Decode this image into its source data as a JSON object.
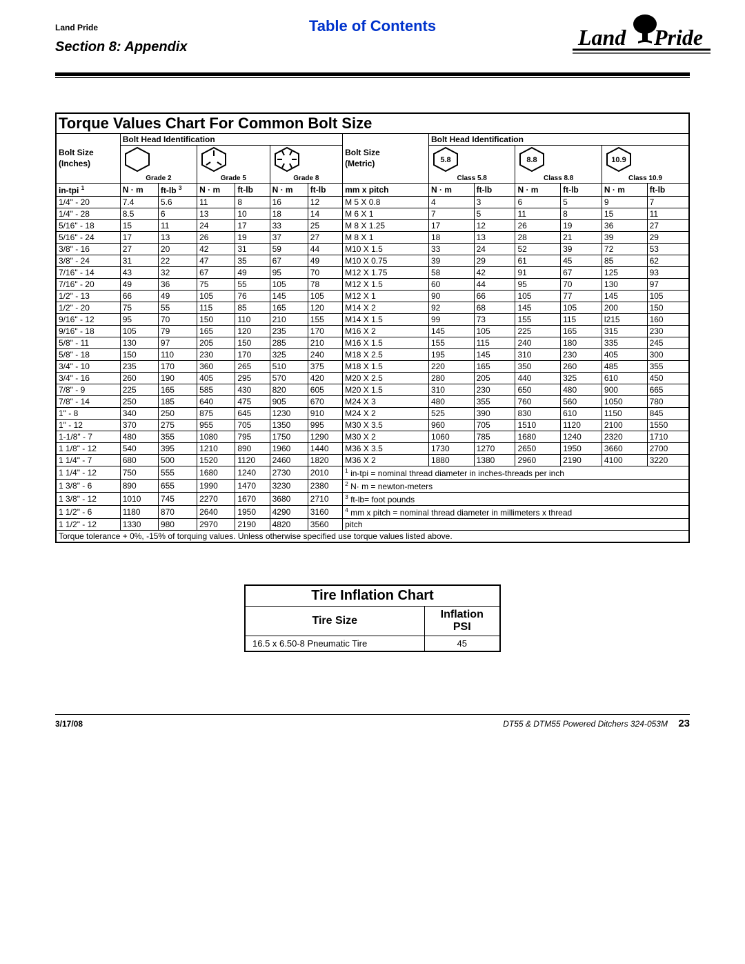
{
  "header": {
    "brand_small": "Land Pride",
    "toc": "Table of Contents",
    "section": "Section 8: Appendix"
  },
  "torque": {
    "title": "Torque Values Chart For Common Bolt Size",
    "ident_label": "Bolt Head Identification",
    "bolt_size_inches_l1": "Bolt Size",
    "bolt_size_inches_l2": "(Inches)",
    "bolt_size_metric_l1": "Bolt Size",
    "bolt_size_metric_l2": "(Metric)",
    "grades_sae": [
      "Grade 2",
      "Grade 5",
      "Grade 8"
    ],
    "classes_metric_num": [
      "5.8",
      "8.8",
      "10.9"
    ],
    "classes_metric_lbl": [
      "Class 5.8",
      "Class 8.8",
      "Class 10.9"
    ],
    "col_in": "in-tpi",
    "col_mm": "mm x pitch",
    "col_nm": "N · m",
    "col_ftlb": "ft-lb",
    "sae_rows": [
      [
        "1/4\" - 20",
        "7.4",
        "5.6",
        "11",
        "8",
        "16",
        "12"
      ],
      [
        "1/4\" - 28",
        "8.5",
        "6",
        "13",
        "10",
        "18",
        "14"
      ],
      [
        "5/16\" - 18",
        "15",
        "11",
        "24",
        "17",
        "33",
        "25"
      ],
      [
        "5/16\" - 24",
        "17",
        "13",
        "26",
        "19",
        "37",
        "27"
      ],
      [
        "3/8\" - 16",
        "27",
        "20",
        "42",
        "31",
        "59",
        "44"
      ],
      [
        "3/8\" - 24",
        "31",
        "22",
        "47",
        "35",
        "67",
        "49"
      ],
      [
        "7/16\" - 14",
        "43",
        "32",
        "67",
        "49",
        "95",
        "70"
      ],
      [
        "7/16\" - 20",
        "49",
        "36",
        "75",
        "55",
        "105",
        "78"
      ],
      [
        "1/2\" - 13",
        "66",
        "49",
        "105",
        "76",
        "145",
        "105"
      ],
      [
        "1/2\" - 20",
        "75",
        "55",
        "115",
        "85",
        "165",
        "120"
      ],
      [
        "9/16\" - 12",
        "95",
        "70",
        "150",
        "110",
        "210",
        "155"
      ],
      [
        "9/16\" - 18",
        "105",
        "79",
        "165",
        "120",
        "235",
        "170"
      ],
      [
        "5/8\" - 11",
        "130",
        "97",
        "205",
        "150",
        "285",
        "210"
      ],
      [
        "5/8\" - 18",
        "150",
        "110",
        "230",
        "170",
        "325",
        "240"
      ],
      [
        "3/4\" - 10",
        "235",
        "170",
        "360",
        "265",
        "510",
        "375"
      ],
      [
        "3/4\" - 16",
        "260",
        "190",
        "405",
        "295",
        "570",
        "420"
      ],
      [
        "7/8\" - 9",
        "225",
        "165",
        "585",
        "430",
        "820",
        "605"
      ],
      [
        "7/8\" - 14",
        "250",
        "185",
        "640",
        "475",
        "905",
        "670"
      ],
      [
        "1\" - 8",
        "340",
        "250",
        "875",
        "645",
        "1230",
        "910"
      ],
      [
        "1\" - 12",
        "370",
        "275",
        "955",
        "705",
        "1350",
        "995"
      ],
      [
        "1-1/8\" - 7",
        "480",
        "355",
        "1080",
        "795",
        "1750",
        "1290"
      ],
      [
        "1 1/8\" - 12",
        "540",
        "395",
        "1210",
        "890",
        "1960",
        "1440"
      ],
      [
        "1 1/4\" - 7",
        "680",
        "500",
        "1520",
        "1120",
        "2460",
        "1820"
      ],
      [
        "1 1/4\" - 12",
        "750",
        "555",
        "1680",
        "1240",
        "2730",
        "2010"
      ],
      [
        "1 3/8\" - 6",
        "890",
        "655",
        "1990",
        "1470",
        "3230",
        "2380"
      ],
      [
        "1 3/8\" - 12",
        "1010",
        "745",
        "2270",
        "1670",
        "3680",
        "2710"
      ],
      [
        "1 1/2\" - 6",
        "1180",
        "870",
        "2640",
        "1950",
        "4290",
        "3160"
      ],
      [
        "1 1/2\" - 12",
        "1330",
        "980",
        "2970",
        "2190",
        "4820",
        "3560"
      ]
    ],
    "metric_rows": [
      [
        "M 5 X 0.8",
        "4",
        "3",
        "6",
        "5",
        "9",
        "7"
      ],
      [
        "M 6 X 1",
        "7",
        "5",
        "11",
        "8",
        "15",
        "11"
      ],
      [
        "M 8 X 1.25",
        "17",
        "12",
        "26",
        "19",
        "36",
        "27"
      ],
      [
        "M 8 X 1",
        "18",
        "13",
        "28",
        "21",
        "39",
        "29"
      ],
      [
        "M10 X 1.5",
        "33",
        "24",
        "52",
        "39",
        "72",
        "53"
      ],
      [
        "M10 X 0.75",
        "39",
        "29",
        "61",
        "45",
        "85",
        "62"
      ],
      [
        "M12 X 1.75",
        "58",
        "42",
        "91",
        "67",
        "125",
        "93"
      ],
      [
        "M12 X 1.5",
        "60",
        "44",
        "95",
        "70",
        "130",
        "97"
      ],
      [
        "M12 X 1",
        "90",
        "66",
        "105",
        "77",
        "145",
        "105"
      ],
      [
        "M14 X 2",
        "92",
        "68",
        "145",
        "105",
        "200",
        "150"
      ],
      [
        "M14 X 1.5",
        "99",
        "73",
        "155",
        "115",
        "l215",
        "160"
      ],
      [
        "M16 X 2",
        "145",
        "105",
        "225",
        "165",
        "315",
        "230"
      ],
      [
        "M16 X 1.5",
        "155",
        "115",
        "240",
        "180",
        "335",
        "245"
      ],
      [
        "M18 X 2.5",
        "195",
        "145",
        "310",
        "230",
        "405",
        "300"
      ],
      [
        "M18 X 1.5",
        "220",
        "165",
        "350",
        "260",
        "485",
        "355"
      ],
      [
        "M20 X 2.5",
        "280",
        "205",
        "440",
        "325",
        "610",
        "450"
      ],
      [
        "M20 X 1.5",
        "310",
        "230",
        "650",
        "480",
        "900",
        "665"
      ],
      [
        "M24 X 3",
        "480",
        "355",
        "760",
        "560",
        "1050",
        "780"
      ],
      [
        "M24 X 2",
        "525",
        "390",
        "830",
        "610",
        "1150",
        "845"
      ],
      [
        "M30 X 3.5",
        "960",
        "705",
        "1510",
        "1120",
        "2100",
        "1550"
      ],
      [
        "M30 X 2",
        "1060",
        "785",
        "1680",
        "1240",
        "2320",
        "1710"
      ],
      [
        "M36 X 3.5",
        "1730",
        "1270",
        "2650",
        "1950",
        "3660",
        "2700"
      ],
      [
        "M36 X 2",
        "1880",
        "1380",
        "2960",
        "2190",
        "4100",
        "3220"
      ]
    ],
    "footnotes": [
      "in-tpi = nominal thread diameter in inches-threads per inch",
      "N· m = newton-meters",
      "ft-lb= foot pounds",
      "mm x pitch = nominal thread diameter in millimeters x thread",
      "pitch"
    ],
    "tolerance": "Torque tolerance + 0%, -15% of torquing values. Unless otherwise specified use torque values listed above."
  },
  "tire": {
    "title": "Tire Inflation Chart",
    "col_size": "Tire Size",
    "col_psi_l1": "Inflation",
    "col_psi_l2": "PSI",
    "rows": [
      [
        "16.5 x 6.50-8 Pneumatic Tire",
        "45"
      ]
    ]
  },
  "footer": {
    "date": "3/17/08",
    "doc": "DT55 & DTM55 Powered Ditchers   324-053M",
    "page": "23"
  },
  "style": {
    "link_color": "#0033cc",
    "line_color": "#000000"
  }
}
